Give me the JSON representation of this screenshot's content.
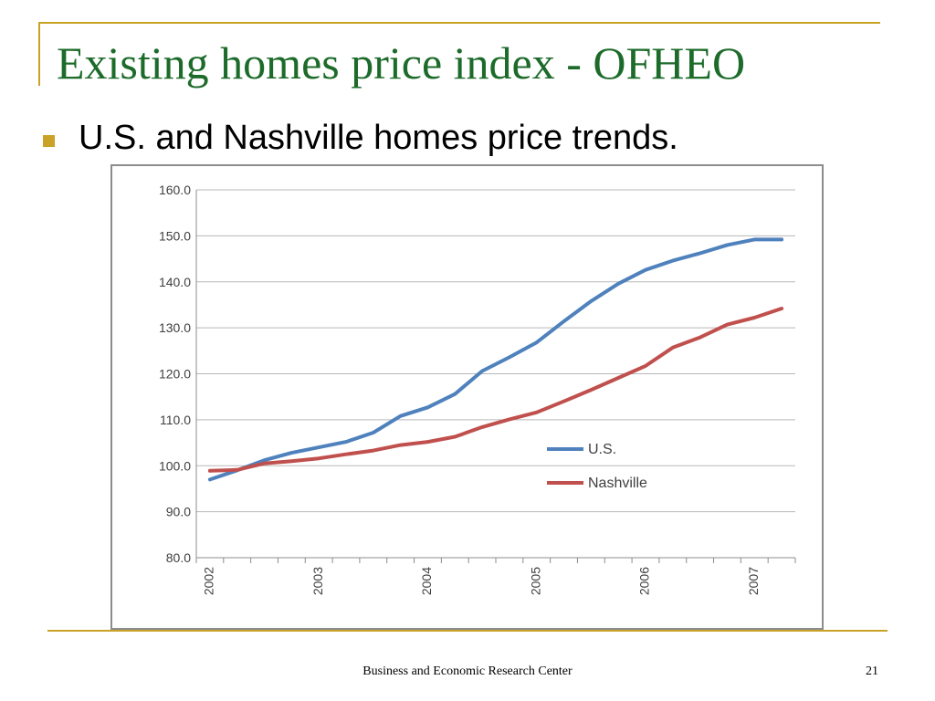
{
  "slide": {
    "title": "Existing homes price index - OFHEO",
    "bullet": "U.S. and Nashville homes price trends.",
    "footer": "Business and Economic Research Center",
    "page_number": "21",
    "accent_color": "#c9a227",
    "title_color": "#1d6b2a"
  },
  "chart_data": {
    "type": "line",
    "title": "",
    "xlabel": "",
    "ylabel": "",
    "ylim": [
      80,
      160
    ],
    "yticks": [
      "80.0",
      "90.0",
      "100.0",
      "110.0",
      "120.0",
      "130.0",
      "140.0",
      "150.0",
      "160.0"
    ],
    "xticks": [
      "2002",
      "2003",
      "2004",
      "2005",
      "2006",
      "2007"
    ],
    "quarters_per_year": 4,
    "grid": true,
    "legend_position": "center-right",
    "series": [
      {
        "name": "U.S.",
        "color": "#4f81bd",
        "values": [
          97.0,
          99.0,
          101.2,
          102.8,
          104.0,
          105.2,
          107.2,
          110.8,
          112.7,
          115.6,
          120.6,
          123.6,
          126.8,
          131.4,
          135.8,
          139.6,
          142.6,
          144.6,
          146.2,
          148.0,
          149.2,
          149.2
        ]
      },
      {
        "name": "Nashville",
        "color": "#c0504d",
        "values": [
          98.9,
          99.1,
          100.5,
          101.0,
          101.6,
          102.5,
          103.3,
          104.5,
          105.2,
          106.3,
          108.4,
          110.1,
          111.6,
          114.0,
          116.5,
          119.1,
          121.7,
          125.7,
          127.9,
          130.7,
          132.2,
          134.2
        ]
      }
    ]
  }
}
